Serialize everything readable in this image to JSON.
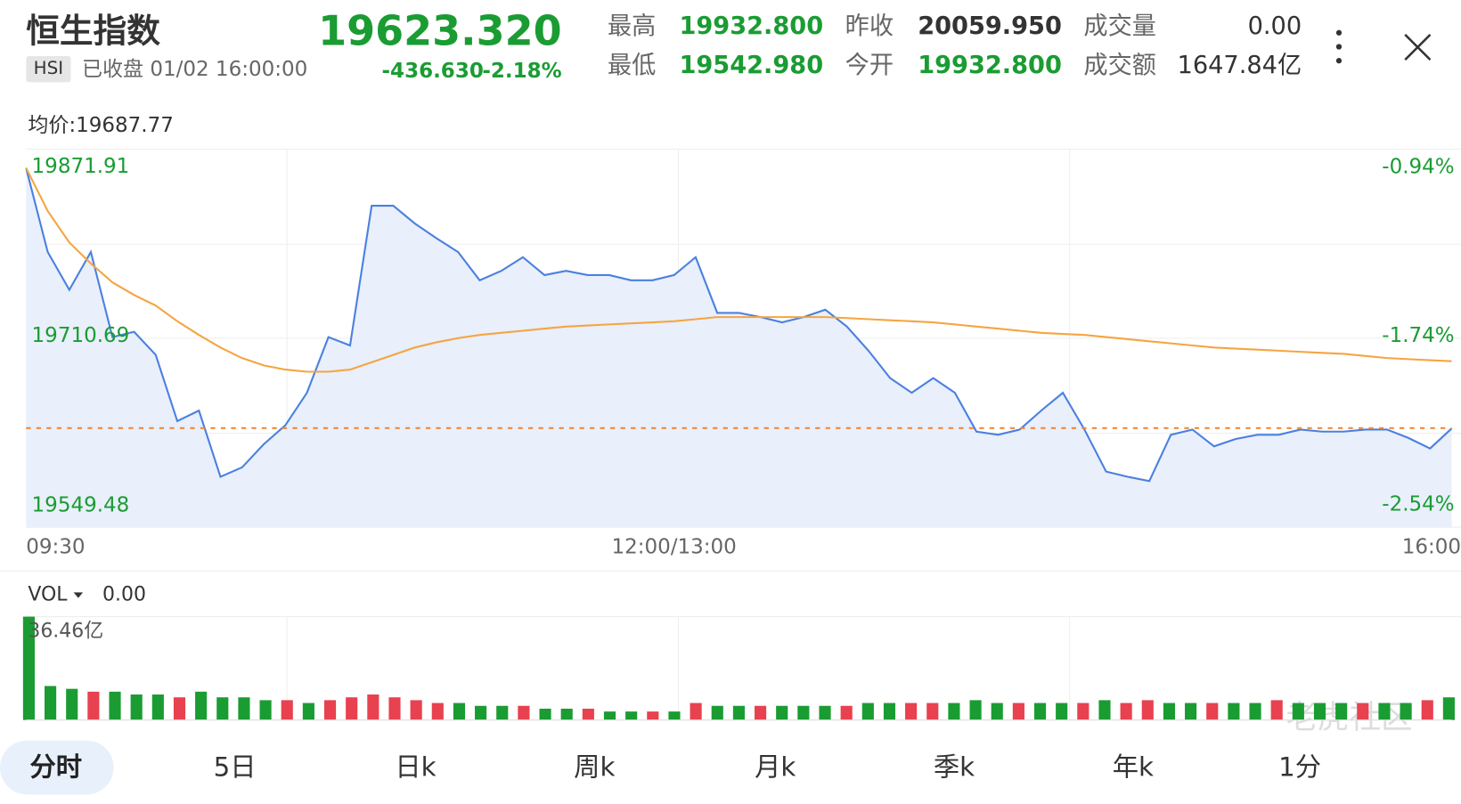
{
  "header": {
    "name": "恒生指数",
    "code": "HSI",
    "status": "已收盘 01/02 16:00:00",
    "change": "-436.630",
    "change_pct": "-2.18%",
    "stats": [
      {
        "label": "最高",
        "value": "19932.800"
      },
      {
        "label": "最低",
        "value": "19542.980"
      },
      {
        "label": "昨收",
        "value": "20059.950"
      },
      {
        "label": "今开",
        "value": "19932.800"
      },
      {
        "label": "成交量",
        "value": "0.00"
      },
      {
        "label": "成交额",
        "value": "1647.84亿"
      }
    ]
  },
  "chart_data": [
    {
      "type": "line",
      "subtitle": "均价:19687.77",
      "categories": [
        "09:30",
        null,
        null,
        null,
        null,
        null,
        null,
        null,
        null,
        null,
        null,
        null,
        null,
        null,
        null,
        null,
        null,
        null,
        null,
        null,
        null,
        null,
        null,
        null,
        null,
        null,
        null,
        null,
        null,
        null,
        "12:00/13:00",
        null,
        null,
        null,
        null,
        null,
        null,
        null,
        null,
        null,
        null,
        null,
        null,
        null,
        null,
        null,
        null,
        null,
        null,
        null,
        null,
        null,
        null,
        null,
        null,
        null,
        null,
        null,
        null,
        null,
        null,
        null,
        null,
        null,
        null,
        null,
        "16:00"
      ],
      "series": [
        {
          "color": "#4a80e0",
          "area_color": "#e9effb",
          "values": [
            19871,
            19791,
            19755,
            19791,
            19710,
            19715,
            19693,
            19630,
            19640,
            19577,
            19586,
            19608,
            19626,
            19657,
            19710,
            19702,
            19835,
            19835,
            19818,
            19804,
            19791,
            19764,
            19773,
            19786,
            19769,
            19773,
            19769,
            19769,
            19764,
            19764,
            19769,
            19786,
            19733,
            19733,
            19729,
            19724,
            19729,
            19736,
            19720,
            19697,
            19671,
            19657,
            19671,
            19657,
            19620,
            19617,
            19622,
            19640,
            19657,
            19622,
            19582,
            19577,
            19573,
            19617,
            19622,
            19606,
            19613,
            19617,
            19617,
            19622,
            19620,
            19620,
            19622,
            19622,
            19614,
            19604,
            19623
          ]
        },
        {
          "color": "#f5a540",
          "values": [
            19871,
            19830,
            19800,
            19780,
            19762,
            19750,
            19740,
            19725,
            19712,
            19700,
            19690,
            19683,
            19679,
            19677,
            19677,
            19679,
            19686,
            19693,
            19700,
            19705,
            19709,
            19712,
            19714,
            19716,
            19718,
            19720,
            19721,
            19722,
            19723,
            19724,
            19725,
            19727,
            19729,
            19729,
            19729,
            19729,
            19729,
            19729,
            19728,
            19727,
            19726,
            19725,
            19724,
            19722,
            19720,
            19718,
            19716,
            19714,
            19713,
            19712,
            19710,
            19708,
            19706,
            19704,
            19702,
            19700,
            19699,
            19698,
            19697,
            19696,
            19695,
            19694,
            19692,
            19690,
            19689,
            19688,
            19687
          ]
        }
      ],
      "reference_line": {
        "value": 19623.32,
        "label": "19623.320",
        "color": "#f08a3c"
      },
      "ylim": [
        19529.0,
        19888.8
      ],
      "yticks": [
        19549.48,
        19710.69,
        19871.91
      ],
      "y2lim": [
        -2.647,
        -0.853
      ],
      "y2ticks": [
        {
          "value": -2.54,
          "label": "-2.54%"
        },
        {
          "value": -1.74,
          "label": "-1.74%"
        },
        {
          "value": -0.94,
          "label": "-0.94%"
        }
      ]
    },
    {
      "type": "bar",
      "title": "VOL",
      "subtitle": "0.00",
      "values": [
        36.46,
        12,
        11,
        10,
        10,
        9,
        9,
        8,
        10,
        8,
        8,
        7,
        7,
        6,
        7,
        8,
        9,
        8,
        7,
        6,
        6,
        5,
        5,
        5,
        4,
        4,
        4,
        3,
        3,
        3,
        3,
        6,
        5,
        5,
        5,
        5,
        5,
        5,
        5,
        6,
        6,
        6,
        6,
        6,
        7,
        6,
        6,
        6,
        6,
        6,
        7,
        6,
        7,
        6,
        6,
        6,
        6,
        6,
        7,
        6,
        6,
        6,
        6,
        6,
        6,
        7,
        8
      ],
      "colors": [
        "#1a9c33",
        "#1a9c33",
        "#1a9c33",
        "#e8414f",
        "#1a9c33",
        "#1a9c33",
        "#1a9c33",
        "#e8414f",
        "#1a9c33",
        "#1a9c33",
        "#1a9c33",
        "#1a9c33",
        "#e8414f",
        "#1a9c33",
        "#e8414f",
        "#e8414f",
        "#e8414f",
        "#e8414f",
        "#e8414f",
        "#e8414f",
        "#1a9c33",
        "#1a9c33",
        "#1a9c33",
        "#e8414f",
        "#1a9c33",
        "#1a9c33",
        "#e8414f",
        "#1a9c33",
        "#1a9c33",
        "#e8414f",
        "#1a9c33",
        "#e8414f",
        "#1a9c33",
        "#1a9c33",
        "#e8414f",
        "#1a9c33",
        "#1a9c33",
        "#1a9c33",
        "#e8414f",
        "#1a9c33",
        "#1a9c33",
        "#e8414f",
        "#e8414f",
        "#1a9c33",
        "#1a9c33",
        "#1a9c33",
        "#e8414f",
        "#1a9c33",
        "#1a9c33",
        "#e8414f",
        "#1a9c33",
        "#e8414f",
        "#e8414f",
        "#1a9c33",
        "#1a9c33",
        "#e8414f",
        "#1a9c33",
        "#1a9c33",
        "#e8414f",
        "#1a9c33",
        "#1a9c33",
        "#1a9c33",
        "#e8414f",
        "#1a9c33",
        "#1a9c33",
        "#e8414f",
        "#1a9c33"
      ],
      "ylim": [
        0,
        36.46
      ],
      "yticks": [
        {
          "value": 36.46,
          "label": "36.46亿"
        }
      ]
    }
  ],
  "tabs": [
    "分时",
    "5日",
    "日k",
    "周k",
    "月k",
    "季k",
    "年k",
    "1分"
  ],
  "watermark": "老虎社区"
}
